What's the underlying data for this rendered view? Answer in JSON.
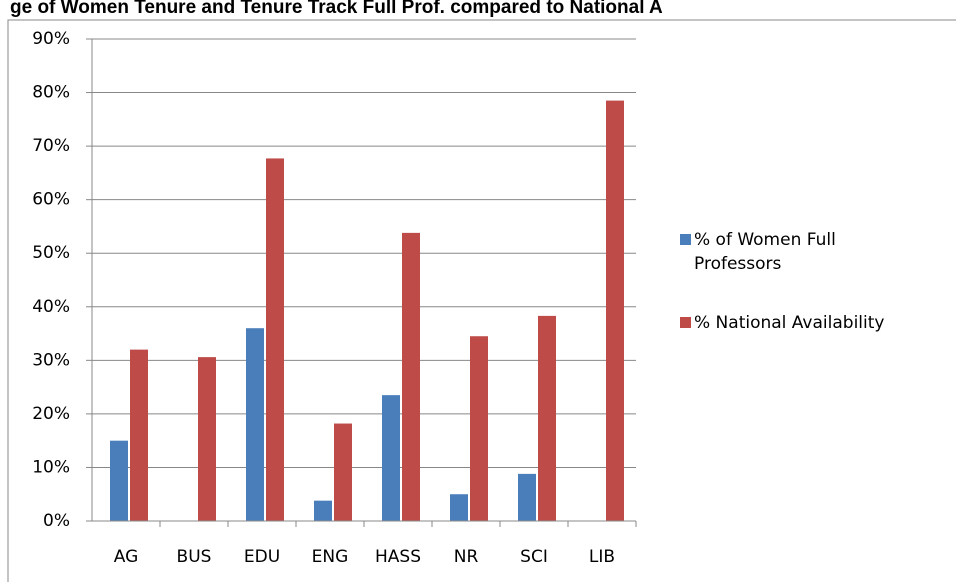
{
  "chart_data": {
    "type": "bar",
    "title": "ge of Women Tenure and Tenure Track Full Prof. compared to National A",
    "categories": [
      "AG",
      "BUS",
      "EDU",
      "ENG",
      "HASS",
      "NR",
      "SCI",
      "LIB"
    ],
    "series": [
      {
        "name": "% of Women Full Professors",
        "color": "#4a7ebb",
        "values": [
          15,
          0,
          36,
          3.8,
          23.5,
          5,
          8.8,
          0
        ]
      },
      {
        "name": "% National Availability",
        "color": "#be4b48",
        "values": [
          32,
          30.6,
          67.7,
          18.2,
          53.8,
          34.5,
          38.3,
          78.5
        ]
      }
    ],
    "ylim": [
      0,
      90
    ],
    "yticks": [
      {
        "value": 0,
        "label": "0%"
      },
      {
        "value": 10,
        "label": "10%"
      },
      {
        "value": 20,
        "label": "20%"
      },
      {
        "value": 30,
        "label": "30%"
      },
      {
        "value": 40,
        "label": "40%"
      },
      {
        "value": 50,
        "label": "50%"
      },
      {
        "value": 60,
        "label": "60%"
      },
      {
        "value": 70,
        "label": "70%"
      },
      {
        "value": 80,
        "label": "80%"
      },
      {
        "value": 90,
        "label": "90%"
      }
    ],
    "grid": true,
    "legend": "right"
  }
}
